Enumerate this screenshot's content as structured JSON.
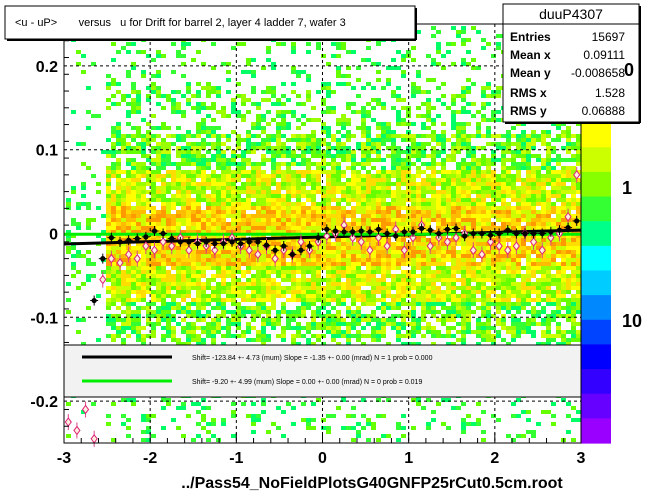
{
  "title_box": {
    "text": "<u - uP>       versus   u for Drift for barrel 2, layer 4 ladder 7, wafer 3"
  },
  "stats": {
    "name": "duuP4307",
    "rows": [
      {
        "label": "Entries",
        "value": "15697"
      },
      {
        "label": "Mean x",
        "value": "0.09111"
      },
      {
        "label": "Mean y",
        "value": "-0.008658"
      },
      {
        "label": "RMS x",
        "value": "1.528"
      },
      {
        "label": "RMS y",
        "value": "0.06888"
      }
    ]
  },
  "footer": {
    "text": "../Pass54_NoFieldPlotsG40GNFP25rCut0.5cm.root"
  },
  "legend": {
    "entries": [
      {
        "color": "#000000",
        "text": "Shift=   -123.84 +- 4.73 (mum) Slope =    -1.35 +- 0.00 (mrad)  N = 1 prob = 0.000"
      },
      {
        "color": "#00ee00",
        "text": "Shift=    -9.20 +- 4.99 (mum) Slope =    0.00 +- 0.00 (mrad)  N = 0 prob = 0.019"
      }
    ]
  },
  "chart_data": {
    "type": "scatter",
    "title": "<u - uP>       versus   u for Drift for barrel 2, layer 4 ladder 7, wafer 3",
    "xlim": [
      -3,
      3
    ],
    "ylim": [
      -0.25,
      0.25
    ],
    "x_ticks": [
      "-3",
      "-2",
      "-1",
      "0",
      "1",
      "2",
      "3"
    ],
    "y_ticks": [
      "-0.2",
      "-0.1",
      "0",
      "0.1",
      "0.2"
    ],
    "z_ticks": [
      "1",
      "10"
    ],
    "z_top_partial": "0",
    "grid": true,
    "series": [
      {
        "kind": "black-profile",
        "x": [
          -2.65,
          -2.55,
          -2.45,
          -2.35,
          -2.25,
          -2.15,
          -2.05,
          -1.95,
          -1.85,
          -1.75,
          -1.65,
          -1.55,
          -1.45,
          -1.35,
          -1.25,
          -1.15,
          -1.05,
          -0.95,
          -0.85,
          -0.75,
          -0.65,
          -0.55,
          -0.45,
          -0.35,
          -0.25,
          -0.15,
          -0.05,
          0.05,
          0.15,
          0.25,
          0.35,
          0.45,
          0.55,
          0.65,
          0.75,
          0.85,
          0.95,
          1.05,
          1.15,
          1.25,
          1.35,
          1.45,
          1.55,
          1.65,
          1.75,
          1.85,
          1.95,
          2.05,
          2.15,
          2.25,
          2.35,
          2.45,
          2.55,
          2.65,
          2.75,
          2.85,
          2.95
        ],
        "y": [
          -0.08,
          -0.03,
          -0.005,
          -0.01,
          -0.008,
          -0.006,
          -0.004,
          0.003,
          0.0,
          -0.006,
          -0.01,
          -0.01,
          -0.012,
          -0.01,
          -0.012,
          -0.012,
          -0.01,
          -0.012,
          -0.01,
          -0.01,
          -0.014,
          -0.02,
          -0.015,
          -0.025,
          -0.02,
          -0.015,
          -0.005,
          0.005,
          0.003,
          0.002,
          0.002,
          0.003,
          0.002,
          0.005,
          0.0,
          -0.003,
          0.002,
          0.002,
          0.006,
          0.004,
          0.0,
          0.005,
          0.006,
          -0.003,
          0.0,
          0.0,
          -0.002,
          0.0,
          0.004,
          0.0,
          0.0,
          0.0,
          0.0,
          0.002,
          0.004,
          0.007,
          0.015
        ]
      },
      {
        "kind": "pink-profile",
        "x": [
          -2.95,
          -2.85,
          -2.75,
          -2.65,
          -2.55,
          -2.45,
          -2.35,
          -2.25,
          -2.15,
          -2.05,
          -1.95,
          -1.85,
          -1.75,
          -1.65,
          -1.55,
          -1.45,
          -1.35,
          -1.25,
          -1.15,
          -1.05,
          -0.95,
          -0.85,
          -0.75,
          -0.65,
          -0.55,
          -0.45,
          -0.35,
          -0.25,
          -0.15,
          -0.05,
          0.05,
          0.15,
          0.25,
          0.35,
          0.45,
          0.55,
          0.65,
          0.75,
          0.85,
          0.95,
          1.05,
          1.15,
          1.25,
          1.35,
          1.45,
          1.55,
          1.65,
          1.75,
          1.85,
          1.95,
          2.05,
          2.15,
          2.25,
          2.35,
          2.45,
          2.55,
          2.65,
          2.75,
          2.85,
          2.95
        ],
        "y": [
          -0.225,
          -0.235,
          -0.21,
          -0.245,
          -0.055,
          -0.03,
          -0.035,
          -0.025,
          -0.03,
          -0.015,
          -0.02,
          -0.01,
          -0.015,
          -0.005,
          -0.02,
          -0.01,
          -0.015,
          -0.02,
          -0.01,
          -0.005,
          -0.015,
          -0.02,
          -0.025,
          -0.015,
          -0.03,
          -0.02,
          -0.025,
          -0.01,
          -0.02,
          -0.01,
          -0.003,
          0.0,
          0.01,
          -0.005,
          -0.01,
          -0.02,
          -0.005,
          -0.015,
          0.005,
          -0.02,
          -0.005,
          0.01,
          -0.015,
          -0.005,
          -0.01,
          -0.005,
          0.0,
          -0.02,
          -0.025,
          -0.01,
          -0.015,
          -0.02,
          -0.015,
          0.0,
          -0.01,
          -0.02,
          -0.005,
          0.0,
          0.02,
          0.07
        ]
      }
    ],
    "fit_lines": [
      {
        "color": "#000000",
        "x": [
          -3,
          3
        ],
        "y": [
          -0.0125,
          0.0041
        ]
      },
      {
        "color": "#00ee00",
        "x": [
          -3,
          3
        ],
        "y": [
          -0.0009,
          -0.0009
        ]
      }
    ]
  }
}
